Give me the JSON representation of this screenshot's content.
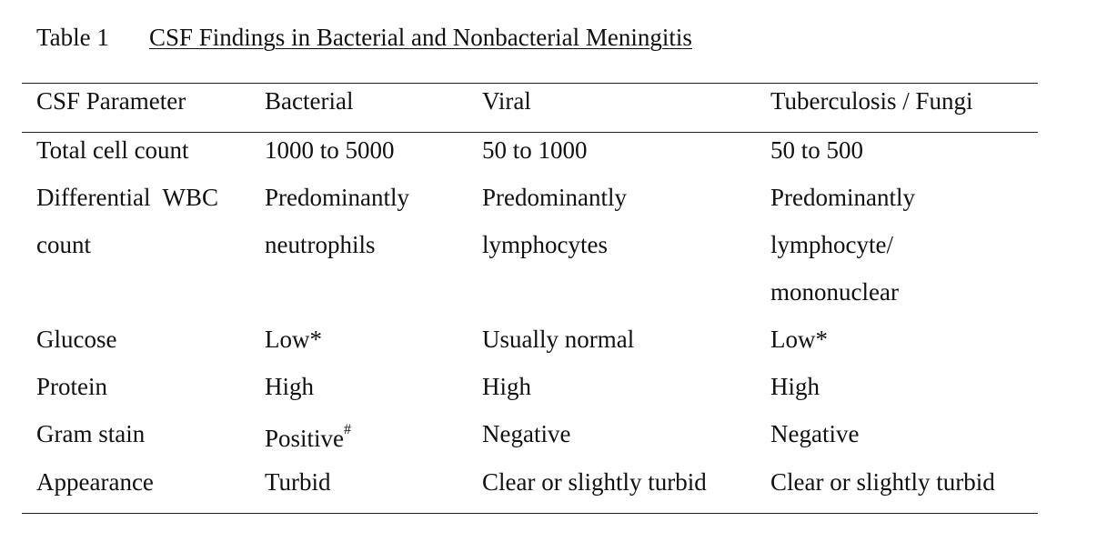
{
  "caption": {
    "label": "Table 1",
    "title": "CSF Findings in Bacterial and Nonbacterial Meningitis"
  },
  "table": {
    "headers": [
      "CSF Parameter",
      "Bacterial",
      "Viral",
      "Tuberculosis / Fungi"
    ],
    "rows": [
      {
        "parameter": "Total cell count",
        "bacterial": "1000 to 5000",
        "viral": "50 to 1000",
        "tb_fungi": "50 to 500"
      },
      {
        "parameter_line1": "Differential  WBC",
        "parameter_line2": "count",
        "bacterial_line1": "Predominantly",
        "bacterial_line2": "neutrophils",
        "viral_line1": "Predominantly",
        "viral_line2": "lymphocytes",
        "tb_fungi_line1": "Predominantly",
        "tb_fungi_line2": "lymphocyte/",
        "tb_fungi_line3": "mononuclear"
      },
      {
        "parameter": "Glucose",
        "bacterial": "Low*",
        "viral": "Usually normal",
        "tb_fungi": "Low*"
      },
      {
        "parameter": "Protein",
        "bacterial": "High",
        "viral": "High",
        "tb_fungi": "High"
      },
      {
        "parameter": "Gram stain",
        "bacterial": "Positive",
        "bacterial_mark": "#",
        "viral": "Negative",
        "tb_fungi": "Negative"
      },
      {
        "parameter": "Appearance",
        "bacterial": "Turbid",
        "viral": "Clear or slightly turbid",
        "tb_fungi": "Clear or slightly turbid"
      }
    ]
  }
}
